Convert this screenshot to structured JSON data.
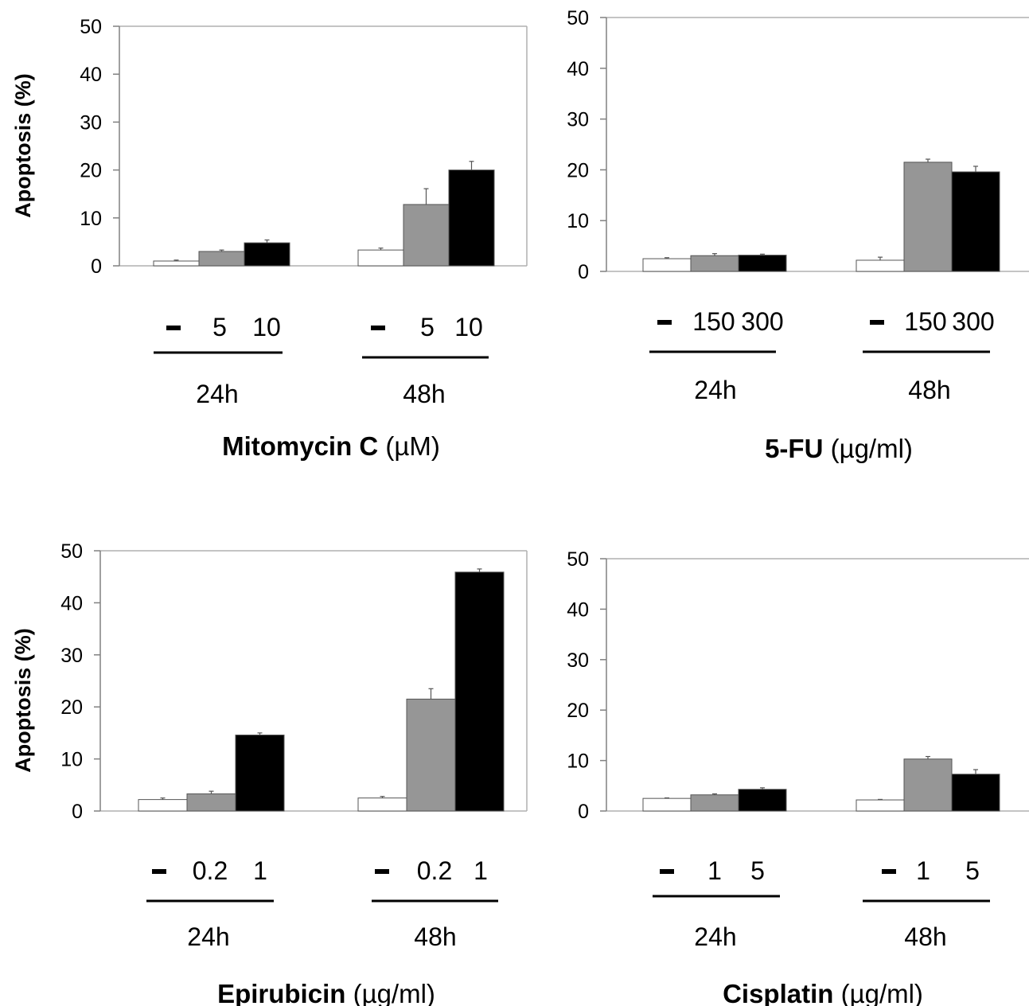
{
  "chart_data": [
    {
      "type": "bar",
      "title_bold": "Mitomycin C",
      "title_unit": "(µM)",
      "ylabel": "Apoptosis (%)",
      "ylim": [
        0,
        50
      ],
      "yticks": [
        0,
        10,
        20,
        30,
        40,
        50
      ],
      "groups": [
        {
          "label": "24h",
          "doses": [
            "–",
            "5",
            "10"
          ],
          "values": [
            1.0,
            3.0,
            4.8
          ],
          "errors": [
            0.2,
            0.3,
            0.6
          ]
        },
        {
          "label": "48h",
          "doses": [
            "–",
            "5",
            "10"
          ],
          "values": [
            3.3,
            12.8,
            20.0
          ],
          "errors": [
            0.4,
            3.3,
            1.8
          ]
        }
      ],
      "bar_colors": [
        "#ffffff",
        "#969696",
        "#000000"
      ],
      "grid": false
    },
    {
      "type": "bar",
      "title_bold": "5-FU",
      "title_unit": "(µg/ml)",
      "ylabel": "",
      "ylim": [
        0,
        50
      ],
      "yticks": [
        0,
        10,
        20,
        30,
        40,
        50
      ],
      "groups": [
        {
          "label": "24h",
          "doses": [
            "–",
            "150",
            "300"
          ],
          "values": [
            2.5,
            3.1,
            3.2
          ],
          "errors": [
            0.2,
            0.4,
            0.2
          ]
        },
        {
          "label": "48h",
          "doses": [
            "–",
            "150",
            "300"
          ],
          "values": [
            2.2,
            21.5,
            19.6
          ],
          "errors": [
            0.6,
            0.6,
            1.1
          ]
        }
      ],
      "bar_colors": [
        "#ffffff",
        "#969696",
        "#000000"
      ],
      "grid": false
    },
    {
      "type": "bar",
      "title_bold": "Epirubicin",
      "title_unit": "(µg/ml)",
      "ylabel": "Apoptosis (%)",
      "ylim": [
        0,
        50
      ],
      "yticks": [
        0,
        10,
        20,
        30,
        40,
        50
      ],
      "groups": [
        {
          "label": "24h",
          "doses": [
            "–",
            "0.2",
            "1"
          ],
          "values": [
            2.2,
            3.3,
            14.6
          ],
          "errors": [
            0.3,
            0.5,
            0.4
          ]
        },
        {
          "label": "48h",
          "doses": [
            "–",
            "0.2",
            "1"
          ],
          "values": [
            2.5,
            21.5,
            45.9
          ],
          "errors": [
            0.3,
            2.0,
            0.6
          ]
        }
      ],
      "bar_colors": [
        "#ffffff",
        "#969696",
        "#000000"
      ],
      "grid": false
    },
    {
      "type": "bar",
      "title_bold": "Cisplatin",
      "title_unit": "(µg/ml)",
      "ylabel": "",
      "ylim": [
        0,
        50
      ],
      "yticks": [
        0,
        10,
        20,
        30,
        40,
        50
      ],
      "groups": [
        {
          "label": "24h",
          "doses": [
            "–",
            "1",
            "5"
          ],
          "values": [
            2.5,
            3.2,
            4.3
          ],
          "errors": [
            0.1,
            0.2,
            0.3
          ]
        },
        {
          "label": "48h",
          "doses": [
            "–",
            "1",
            "5"
          ],
          "values": [
            2.2,
            10.3,
            7.3
          ],
          "errors": [
            0.1,
            0.5,
            0.9
          ]
        }
      ],
      "bar_colors": [
        "#ffffff",
        "#969696",
        "#000000"
      ],
      "grid": false
    }
  ]
}
